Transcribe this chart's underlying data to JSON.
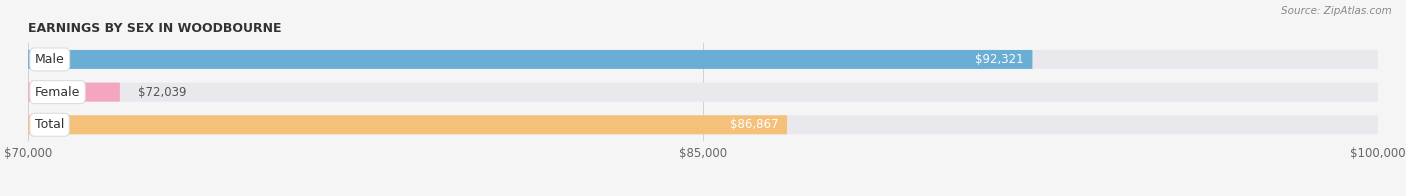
{
  "title": "EARNINGS BY SEX IN WOODBOURNE",
  "source": "Source: ZipAtlas.com",
  "categories": [
    "Male",
    "Female",
    "Total"
  ],
  "values": [
    92321,
    72039,
    86867
  ],
  "labels": [
    "$92,321",
    "$72,039",
    "$86,867"
  ],
  "bar_colors": [
    "#6aaed6",
    "#f4a6c0",
    "#f5c07a"
  ],
  "bar_bg_color": "#e8e8ed",
  "xmin": 70000,
  "xmax": 100000,
  "xticks": [
    70000,
    85000,
    100000
  ],
  "xtick_labels": [
    "$70,000",
    "$85,000",
    "$100,000"
  ],
  "title_fontsize": 9,
  "bar_height": 0.58,
  "fig_width": 14.06,
  "fig_height": 1.96,
  "dpi": 100,
  "label_inside_threshold": 82000
}
